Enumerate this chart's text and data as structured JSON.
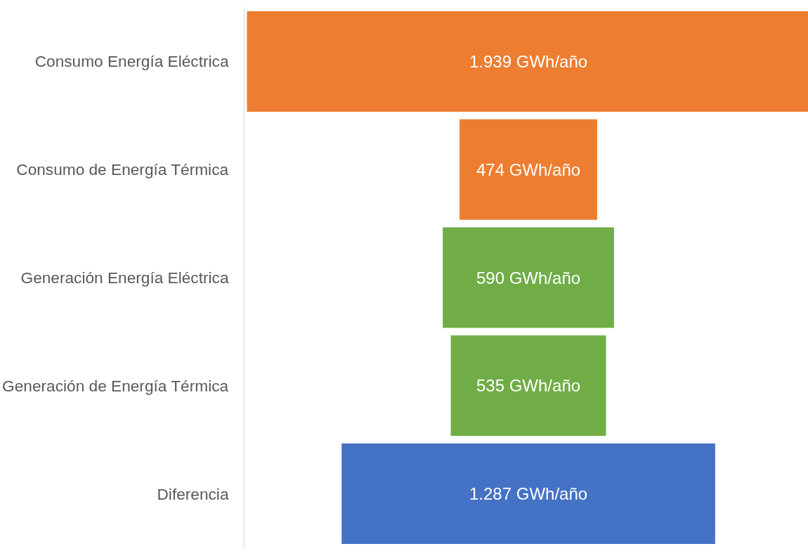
{
  "chart_data": {
    "type": "other",
    "categories": [
      "Consumo Energía Eléctrica",
      "Consumo de Energía Térmica",
      "Generación Energía Eléctrica",
      "Generación de Energía Térmica",
      "Diferencia"
    ],
    "values": [
      1939,
      474,
      590,
      535,
      1287
    ],
    "colors": [
      "#ed7d31",
      "#ed7d31",
      "#70ad47",
      "#70ad47",
      "#4472c4"
    ],
    "value_labels": [
      "1.939 GWh/año",
      "474 GWh/año",
      "590 GWh/año",
      "535 GWh/año",
      "1.287 GWh/año"
    ]
  }
}
